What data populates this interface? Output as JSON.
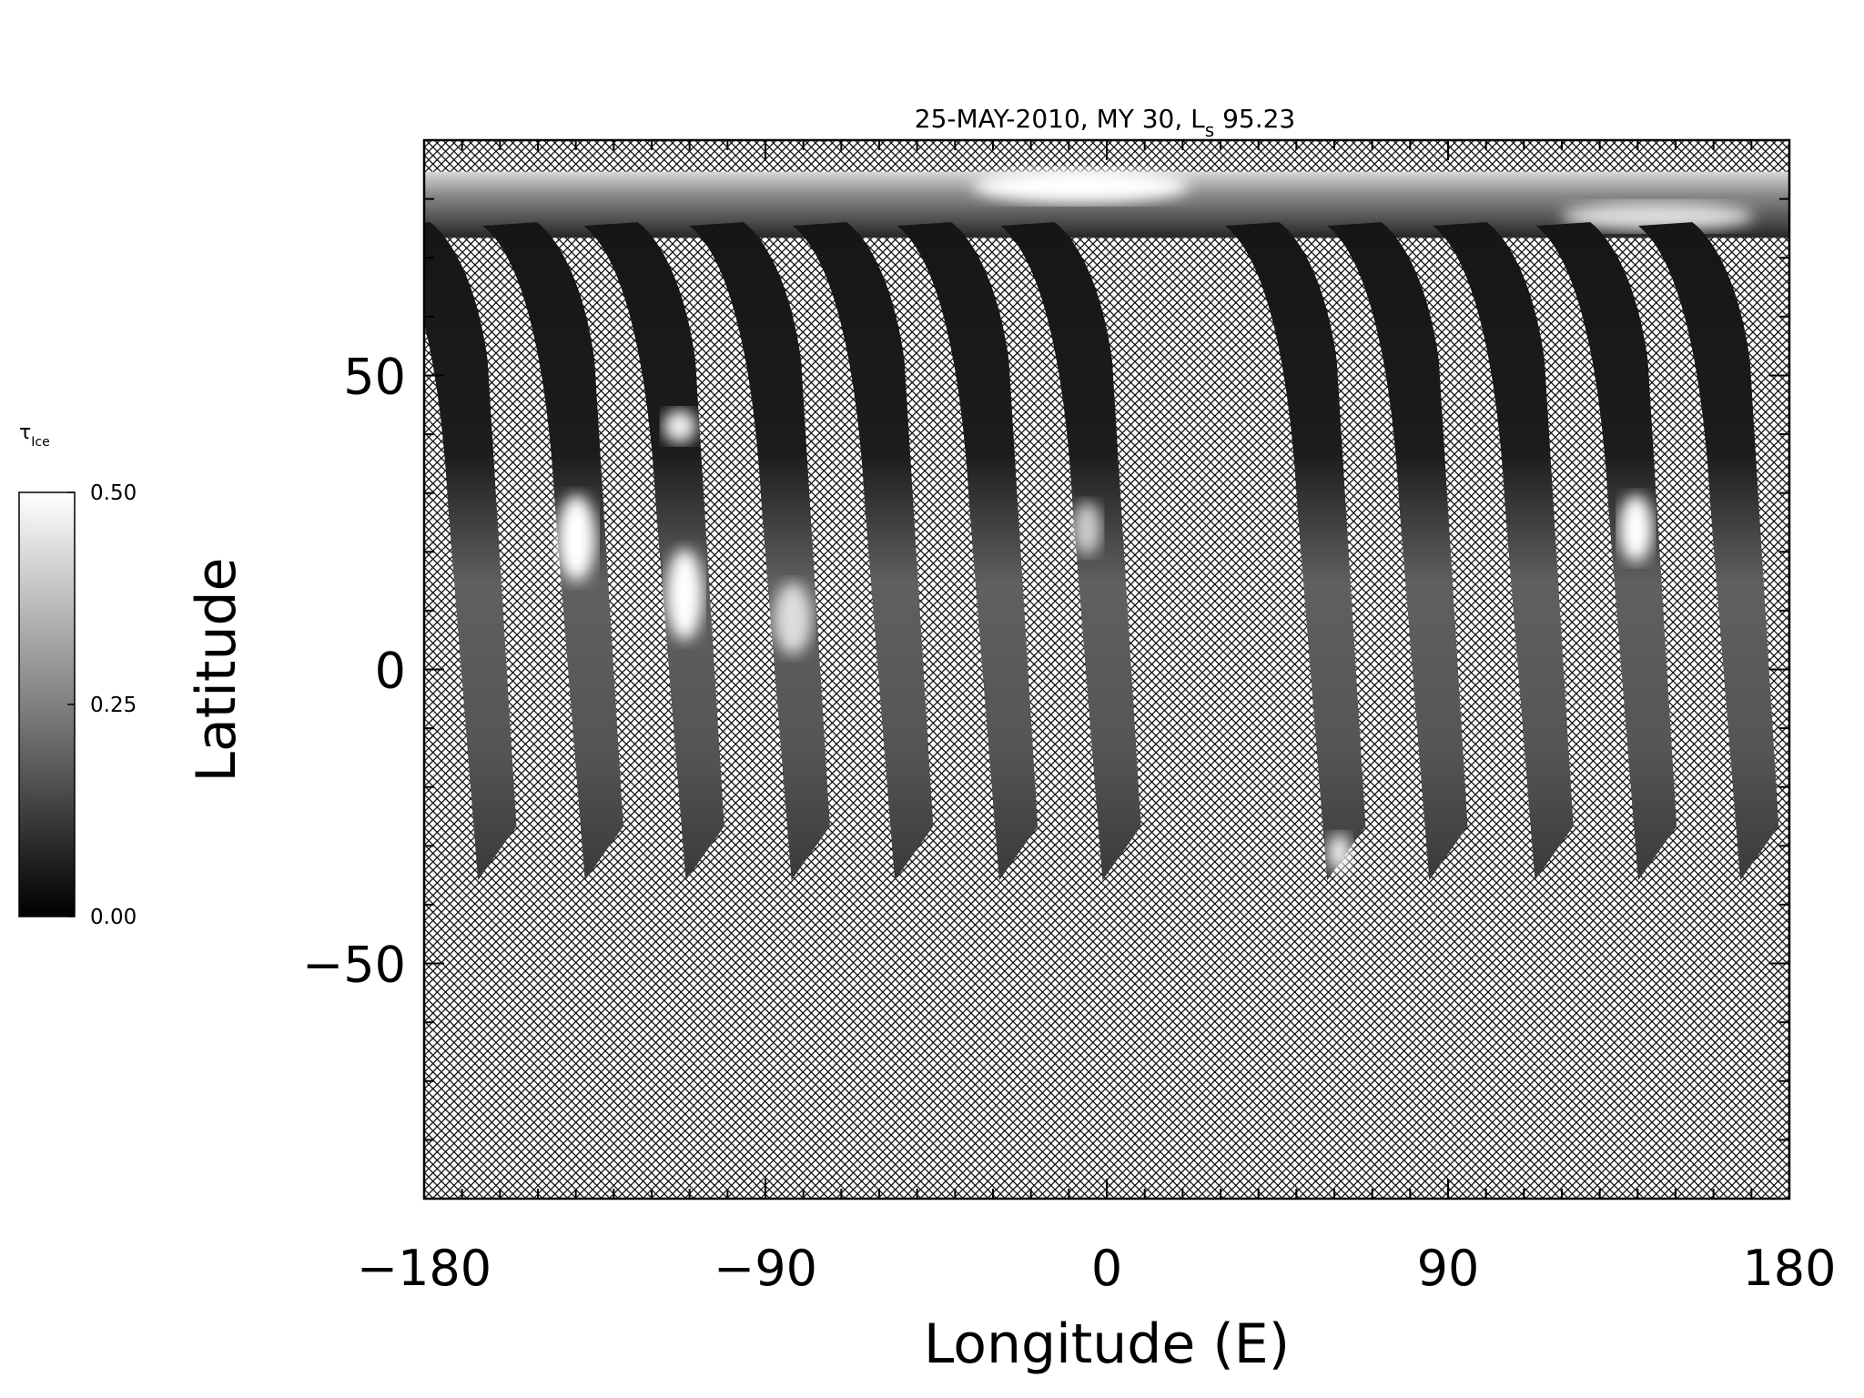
{
  "chart_data": {
    "type": "map",
    "title": [
      "25-MAY-2010, MY 30,  L",
      "s",
      " 95.23"
    ],
    "xlabel": "Longitude (E)",
    "ylabel": "Latitude",
    "xlim": [
      -180,
      180
    ],
    "xticks": [
      {
        "value": -180,
        "label": "−180"
      },
      {
        "value": -90,
        "label": "−90"
      },
      0,
      90,
      180
    ],
    "xminorticks": [
      -170,
      -160,
      -150,
      -140,
      -130,
      -120,
      -110,
      -100,
      -80,
      -70,
      -60,
      -50,
      -40,
      -30,
      -20,
      -10,
      10,
      20,
      30,
      40,
      50,
      60,
      70,
      80,
      100,
      110,
      120,
      130,
      140,
      150,
      160,
      170
    ],
    "ylim": [
      -90,
      90
    ],
    "yticks": [
      {
        "value": -50,
        "label": "−50"
      },
      0,
      50
    ],
    "yminorticks": [
      -80,
      -70,
      -60,
      -40,
      -30,
      -20,
      -10,
      10,
      20,
      30,
      40,
      60,
      70,
      80
    ],
    "colorbar": {
      "label": [
        "τ",
        "Ice"
      ],
      "lim": [
        0,
        0.5
      ],
      "ticks": [
        {
          "value": 0,
          "label": "0.00"
        },
        {
          "value": 0.25,
          "label": "0.25"
        },
        {
          "value": 0.5,
          "label": "0.50"
        }
      ],
      "colors": [
        "#000000",
        "#ffffff"
      ]
    }
  }
}
